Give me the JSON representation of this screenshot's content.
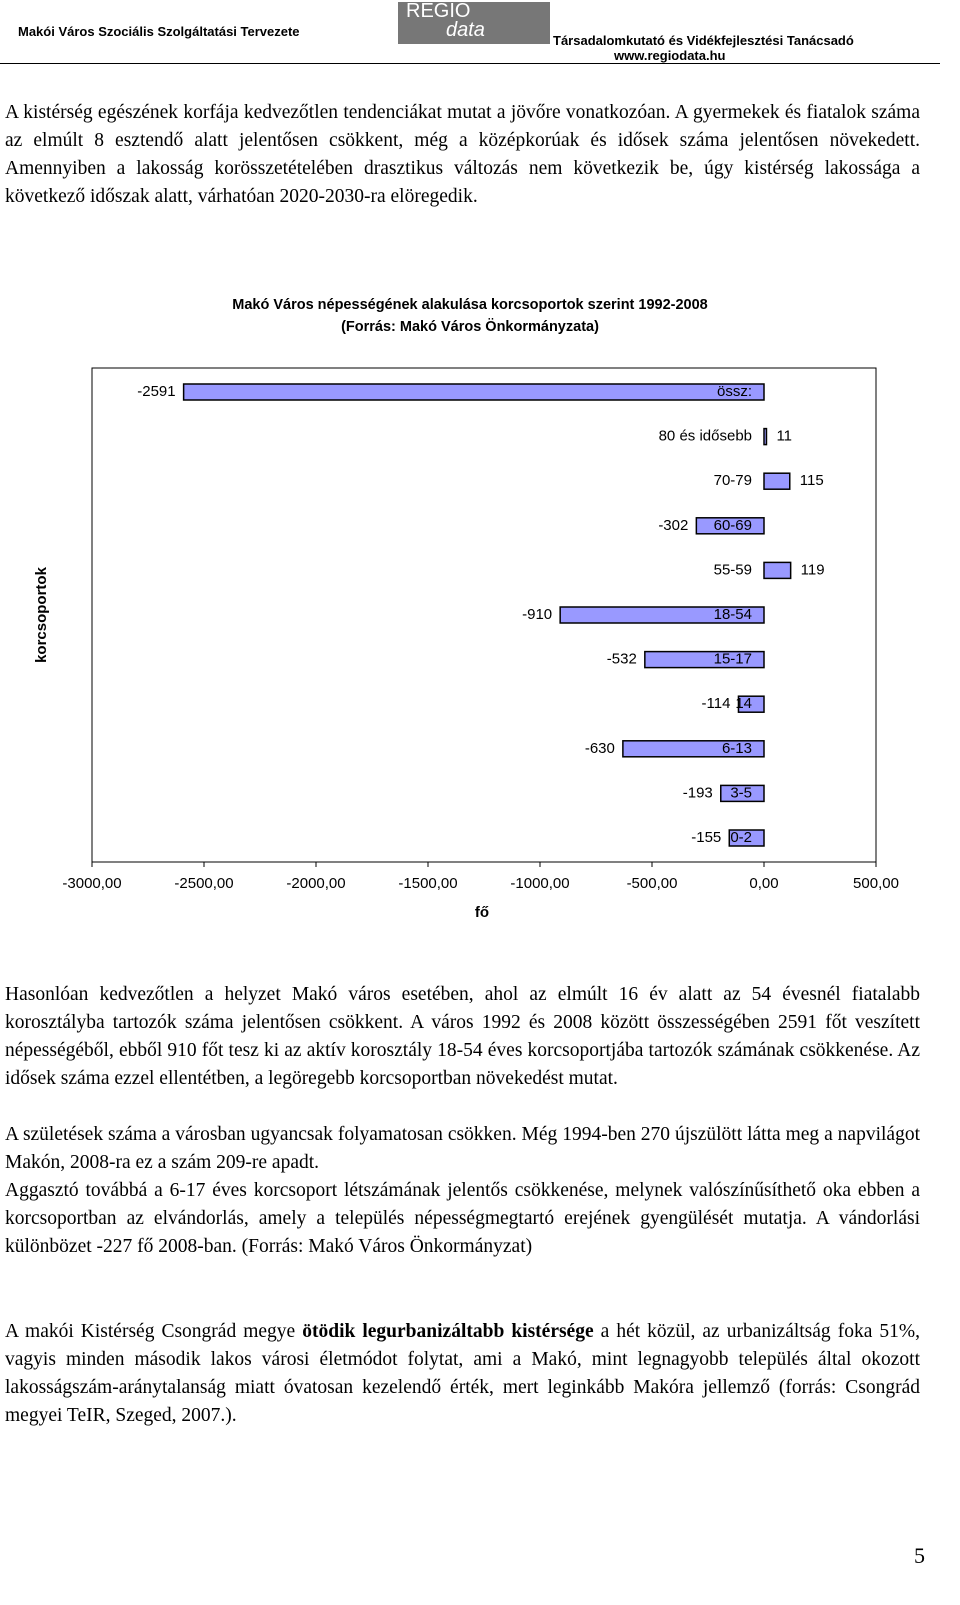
{
  "header": {
    "left": "Makói Város Szociális Szolgáltatási Tervezete",
    "logo_top": "REGIO",
    "logo_bottom": "data",
    "right": "Társadalomkutató és Vidékfejlesztési Tanácsadó",
    "url": "www.regiodata.hu"
  },
  "paragraphs": [
    "A kistérség egészének korfája kedvezőtlen tendenciákat mutat a jövőre vonatkozóan. A gyermekek és fiatalok száma az elmúlt 8 esztendő alatt jelentősen csökkent, még a középkorúak és idősek száma jelentősen növekedett. Amennyiben a lakosság korösszetételében drasztikus változás nem következik be, úgy kistérség lakossága a következő időszak alatt, várhatóan 2020-2030-ra elöregedik.",
    "Hasonlóan kedvezőtlen a helyzet Makó város esetében, ahol az elmúlt 16 év alatt az 54 évesnél fiatalabb korosztályba tartozók száma jelentősen csökkent. A város 1992 és 2008 között összességében 2591 főt veszített népességéből, ebből 910 főt tesz ki az aktív korosztály 18-54 éves korcsoportjába tartozók számának csökkenése. Az idősek száma ezzel ellentétben, a legöregebb korcsoportban növekedést mutat.",
    "A születések száma a városban ugyancsak folyamatosan csökken. Még 1994-ben 270 újszülött látta meg a napvilágot Makón, 2008-ra ez a szám 209-re apadt.",
    "Aggasztó továbbá a 6-17 éves korcsoport létszámának jelentős csökkenése, melynek valószínűsíthető oka ebben a korcsoportban az elvándorlás, amely a település népességmegtartó erejének gyengülését mutatja. A vándorlási különbözet -227 fő 2008-ban. (Forrás: Makó Város Önkormányzat)"
  ],
  "final_paragraph": {
    "before": "A makói Kistérség Csongrád megye ",
    "bold": "ötödik legurbanizáltabb kistérsége",
    "after": " a hét közül, az urbanizáltság foka 51%, vagyis minden második lakos városi életmódot folytat, ami a Makó, mint legnagyobb település által okozott lakosságszám-aránytalanság miatt óvatosan kezelendő érték, mert leginkább Makóra jellemző (forrás: Csongrád megyei TeIR, Szeged, 2007.)."
  },
  "page_number": "5",
  "chart_data": {
    "type": "bar",
    "orientation": "horizontal",
    "title": "Makó Város népességének alakulása korcsoportok szerint 1992-2008",
    "subtitle": "(Forrás: Makó Város Önkormányzata)",
    "x_label": "fő",
    "y_label": "korcsoportok",
    "categories": [
      "össz:",
      "80 és idősebb",
      "70-79",
      "60-69",
      "55-59",
      "18-54",
      "15-17",
      "14",
      "6-13",
      "3-5",
      "0-2"
    ],
    "values": [
      -2591,
      11,
      115,
      -302,
      119,
      -910,
      -532,
      -114,
      -630,
      -193,
      -155
    ],
    "color": "#9999ff",
    "xlim": [
      -3000,
      500
    ],
    "xticks": [
      {
        "value": -3000,
        "label": "-3000,00"
      },
      {
        "value": -2500,
        "label": "-2500,00"
      },
      {
        "value": -2000,
        "label": "-2000,00"
      },
      {
        "value": -1500,
        "label": "-1500,00"
      },
      {
        "value": -1000,
        "label": "-1000,00"
      },
      {
        "value": -500,
        "label": "-500,00"
      },
      {
        "value": 0,
        "label": "0,00"
      },
      {
        "value": 500,
        "label": "500,00"
      }
    ],
    "grid": false
  }
}
